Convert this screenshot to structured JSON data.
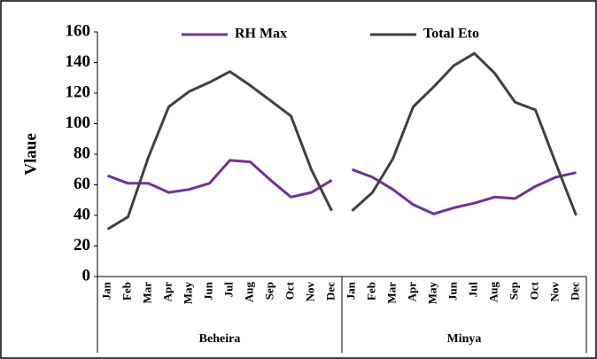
{
  "chart_data": {
    "type": "line",
    "ylabel": "Vlaue",
    "ylim": [
      0,
      160
    ],
    "yticks": [
      0,
      20,
      40,
      60,
      80,
      100,
      120,
      140,
      160
    ],
    "groups": [
      {
        "label": "Beheira",
        "categories": [
          "Jan",
          "Feb",
          "Mar",
          "Apr",
          "May",
          "Jun",
          "Jul",
          "Aug",
          "Sep",
          "Oct",
          "Nov",
          "Dec"
        ]
      },
      {
        "label": "Minya",
        "categories": [
          "Jan",
          "Feb",
          "Mar",
          "Apr",
          "May",
          "Jun",
          "Jul",
          "Aug",
          "Sep",
          "Oct",
          "Nov",
          "Dec"
        ]
      }
    ],
    "series": [
      {
        "name": "RH Max",
        "color": "#7030a0",
        "values": [
          66,
          61,
          61,
          55,
          57,
          61,
          76,
          75,
          63,
          52,
          55,
          63,
          70,
          65,
          57,
          47,
          41,
          45,
          48,
          52,
          51,
          59,
          65,
          68
        ]
      },
      {
        "name": "Total Eto",
        "color": "#404040",
        "values": [
          31,
          39,
          78,
          111,
          121,
          127,
          134,
          125,
          115,
          105,
          70,
          43,
          43,
          55,
          77,
          111,
          124,
          138,
          146,
          133,
          114,
          109,
          74,
          40
        ]
      }
    ]
  }
}
